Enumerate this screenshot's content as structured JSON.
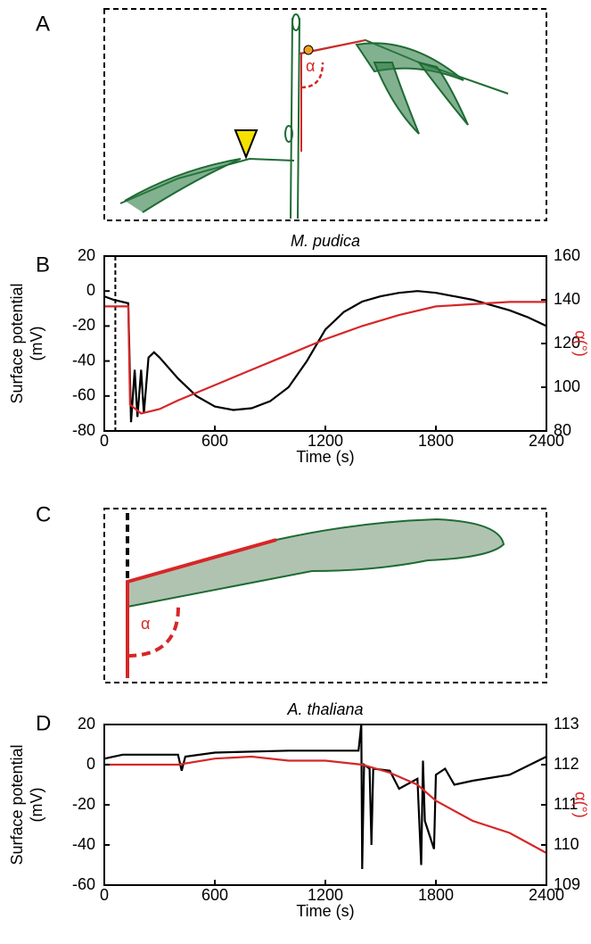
{
  "panel_labels": [
    "A",
    "B",
    "C",
    "D"
  ],
  "diagram_a": {
    "angle_label": "α"
  },
  "diagram_c": {
    "angle_label": "α"
  },
  "chart_data": [
    {
      "type": "line",
      "title": "M. pudica",
      "xlabel": "Time (s)",
      "ylabel": [
        "Surface potential",
        "(mV)"
      ],
      "y2label": "α(°)",
      "xlim": [
        0,
        2400
      ],
      "xticks": [
        0,
        600,
        1200,
        1800,
        2400
      ],
      "ylim": [
        -80,
        20
      ],
      "yticks": [
        -80,
        -60,
        -40,
        -20,
        0,
        20
      ],
      "y2lim": [
        80,
        160
      ],
      "y2ticks": [
        80,
        100,
        120,
        140,
        160
      ],
      "vlines": [
        60
      ],
      "series": [
        {
          "color": "#000000",
          "x": [
            0,
            50,
            130,
            145,
            165,
            180,
            200,
            215,
            240,
            270,
            300,
            400,
            500,
            600,
            700,
            800,
            900,
            1000,
            1100,
            1200,
            1300,
            1400,
            1500,
            1600,
            1700,
            1800,
            1900,
            2000,
            2100,
            2200,
            2300,
            2400
          ],
          "values": [
            -3,
            -5,
            -7,
            -75,
            -45,
            -72,
            -45,
            -70,
            -38,
            -35,
            -38,
            -50,
            -60,
            -66,
            -68,
            -67,
            -63,
            -55,
            -40,
            -22,
            -12,
            -6,
            -3,
            -1,
            0,
            -1,
            -3,
            -5,
            -8,
            -11,
            -15,
            -20
          ]
        },
        {
          "color": "#d62728",
          "axis": "y2",
          "x": [
            0,
            130,
            140,
            200,
            300,
            400,
            600,
            800,
            1000,
            1200,
            1400,
            1600,
            1800,
            2000,
            2200,
            2400
          ],
          "values": [
            137,
            137,
            92,
            88,
            90,
            94,
            101,
            108,
            115,
            122,
            128,
            133,
            137,
            138,
            139,
            139
          ]
        }
      ]
    },
    {
      "type": "line",
      "title": "A. thaliana",
      "xlabel": "Time (s)",
      "ylabel": [
        "Surface potential",
        "(mV)"
      ],
      "y2label": "α(°)",
      "xlim": [
        0,
        2400
      ],
      "xticks": [
        0,
        600,
        1200,
        1800,
        2400
      ],
      "ylim": [
        -60,
        20
      ],
      "yticks": [
        -60,
        -40,
        -20,
        0,
        20
      ],
      "y2lim": [
        109,
        113
      ],
      "y2ticks": [
        109,
        110,
        111,
        112,
        113
      ],
      "series": [
        {
          "color": "#000000",
          "x": [
            0,
            100,
            400,
            420,
            440,
            600,
            1000,
            1380,
            1395,
            1400,
            1410,
            1440,
            1450,
            1460,
            1550,
            1600,
            1700,
            1720,
            1730,
            1740,
            1790,
            1800,
            1850,
            1900,
            2000,
            2200,
            2400
          ],
          "values": [
            3,
            5,
            5,
            -3,
            4,
            6,
            7,
            7,
            20,
            -52,
            0,
            -2,
            -40,
            -2,
            -3,
            -12,
            -7,
            -50,
            2,
            -28,
            -42,
            -5,
            -2,
            -10,
            -8,
            -5,
            4
          ]
        },
        {
          "color": "#d62728",
          "axis": "y2",
          "x": [
            0,
            400,
            600,
            800,
            1000,
            1200,
            1400,
            1550,
            1700,
            1800,
            2000,
            2200,
            2400
          ],
          "values": [
            112,
            112,
            112.15,
            112.2,
            112.1,
            112.1,
            112,
            111.8,
            111.5,
            111.1,
            110.6,
            110.3,
            109.8
          ]
        }
      ]
    }
  ]
}
